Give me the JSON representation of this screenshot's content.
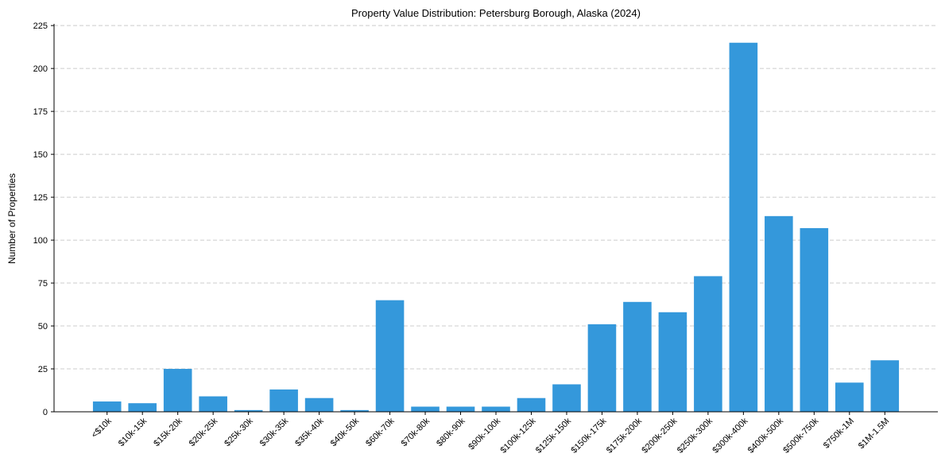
{
  "chart_data": {
    "type": "bar",
    "title": "Property Value Distribution: Petersburg Borough, Alaska (2024)",
    "xlabel": "",
    "ylabel": "Number of Properties",
    "categories": [
      "<$10k",
      "$10k-15k",
      "$15k-20k",
      "$20k-25k",
      "$25k-30k",
      "$30k-35k",
      "$35k-40k",
      "$40k-50k",
      "$60k-70k",
      "$70k-80k",
      "$80k-90k",
      "$90k-100k",
      "$100k-125k",
      "$125k-150k",
      "$150k-175k",
      "$175k-200k",
      "$200k-250k",
      "$250k-300k",
      "$300k-400k",
      "$400k-500k",
      "$500k-750k",
      "$750k-1M",
      "$1M-1.5M"
    ],
    "values": [
      6,
      5,
      25,
      9,
      1,
      13,
      8,
      1,
      65,
      3,
      3,
      3,
      8,
      16,
      51,
      64,
      58,
      79,
      215,
      114,
      107,
      17,
      30
    ],
    "ylim": [
      0,
      226
    ],
    "yticks": [
      0,
      25,
      50,
      75,
      100,
      125,
      150,
      175,
      200,
      225
    ],
    "grid": "y-dashed",
    "bar_color": "#3498db"
  }
}
